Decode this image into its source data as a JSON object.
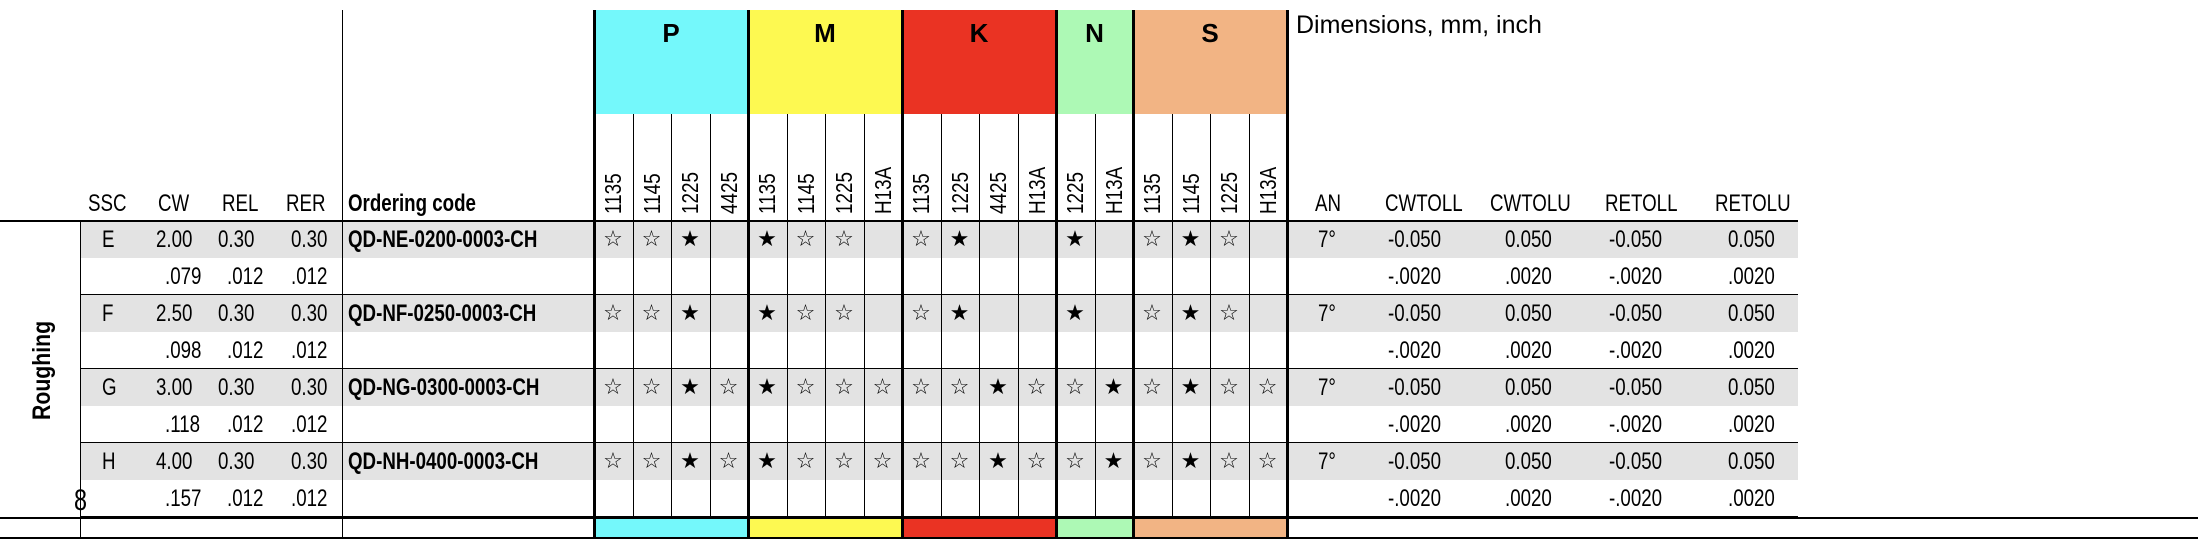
{
  "dims_title": "Dimensions, mm, inch",
  "section_label": "Roughing",
  "footnote_mark": "8",
  "left_headers": {
    "ssc": "SSC",
    "cw": "CW",
    "rel": "REL",
    "rer": "RER",
    "code": "Ordering code"
  },
  "right_headers": {
    "an": "AN",
    "cwtoll": "CWTOLL",
    "cwtolu": "CWTOLU",
    "retoll": "RETOLL",
    "retolu": "RETOLU"
  },
  "symbols": {
    "primary": "★",
    "secondary": "☆"
  },
  "groups": [
    {
      "key": "P",
      "label": "P",
      "color": "#74f8fb",
      "grades": [
        "1135",
        "1145",
        "1225",
        "4425"
      ]
    },
    {
      "key": "M",
      "label": "M",
      "color": "#fdf951",
      "grades": [
        "1135",
        "1145",
        "1225",
        "H13A"
      ]
    },
    {
      "key": "K",
      "label": "K",
      "color": "#ea3323",
      "grades": [
        "1135",
        "1225",
        "4425",
        "H13A"
      ]
    },
    {
      "key": "N",
      "label": "N",
      "color": "#adf9b5",
      "grades": [
        "1225",
        "H13A"
      ]
    },
    {
      "key": "S",
      "label": "S",
      "color": "#f2b484",
      "grades": [
        "1135",
        "1145",
        "1225",
        "H13A"
      ]
    }
  ],
  "rows": [
    {
      "ssc": "E",
      "metric": {
        "cw": "2.00",
        "rel": "0.30",
        "rer": "0.30",
        "code": "QD-NE-0200-0003-CH",
        "an": "7°",
        "cwtoll": "-0.050",
        "cwtolu": "0.050",
        "retoll": "-0.050",
        "retolu": "0.050"
      },
      "inch": {
        "cw": ".079",
        "rel": ".012",
        "rer": ".012",
        "cwtoll": "-.0020",
        "cwtolu": ".0020",
        "retoll": "-.0020",
        "retolu": ".0020"
      },
      "marks": {
        "P": [
          "s",
          "s",
          "p",
          ""
        ],
        "M": [
          "p",
          "s",
          "s",
          ""
        ],
        "K": [
          "s",
          "p",
          "",
          ""
        ],
        "N": [
          "p",
          ""
        ],
        "S": [
          "s",
          "p",
          "s",
          ""
        ]
      }
    },
    {
      "ssc": "F",
      "metric": {
        "cw": "2.50",
        "rel": "0.30",
        "rer": "0.30",
        "code": "QD-NF-0250-0003-CH",
        "an": "7°",
        "cwtoll": "-0.050",
        "cwtolu": "0.050",
        "retoll": "-0.050",
        "retolu": "0.050"
      },
      "inch": {
        "cw": ".098",
        "rel": ".012",
        "rer": ".012",
        "cwtoll": "-.0020",
        "cwtolu": ".0020",
        "retoll": "-.0020",
        "retolu": ".0020"
      },
      "marks": {
        "P": [
          "s",
          "s",
          "p",
          ""
        ],
        "M": [
          "p",
          "s",
          "s",
          ""
        ],
        "K": [
          "s",
          "p",
          "",
          ""
        ],
        "N": [
          "p",
          ""
        ],
        "S": [
          "s",
          "p",
          "s",
          ""
        ]
      }
    },
    {
      "ssc": "G",
      "metric": {
        "cw": "3.00",
        "rel": "0.30",
        "rer": "0.30",
        "code": "QD-NG-0300-0003-CH",
        "an": "7°",
        "cwtoll": "-0.050",
        "cwtolu": "0.050",
        "retoll": "-0.050",
        "retolu": "0.050"
      },
      "inch": {
        "cw": ".118",
        "rel": ".012",
        "rer": ".012",
        "cwtoll": "-.0020",
        "cwtolu": ".0020",
        "retoll": "-.0020",
        "retolu": ".0020"
      },
      "marks": {
        "P": [
          "s",
          "s",
          "p",
          "s"
        ],
        "M": [
          "p",
          "s",
          "s",
          "s"
        ],
        "K": [
          "s",
          "s",
          "p",
          "s"
        ],
        "N": [
          "s",
          "p"
        ],
        "S": [
          "s",
          "p",
          "s",
          "s"
        ]
      }
    },
    {
      "ssc": "H",
      "metric": {
        "cw": "4.00",
        "rel": "0.30",
        "rer": "0.30",
        "code": "QD-NH-0400-0003-CH",
        "an": "7°",
        "cwtoll": "-0.050",
        "cwtolu": "0.050",
        "retoll": "-0.050",
        "retolu": "0.050"
      },
      "inch": {
        "cw": ".157",
        "rel": ".012",
        "rer": ".012",
        "cwtoll": "-.0020",
        "cwtolu": ".0020",
        "retoll": "-.0020",
        "retolu": ".0020"
      },
      "marks": {
        "P": [
          "s",
          "s",
          "p",
          "s"
        ],
        "M": [
          "p",
          "s",
          "s",
          "s"
        ],
        "K": [
          "s",
          "s",
          "p",
          "s"
        ],
        "N": [
          "s",
          "p"
        ],
        "S": [
          "s",
          "p",
          "s",
          "s"
        ]
      }
    }
  ]
}
